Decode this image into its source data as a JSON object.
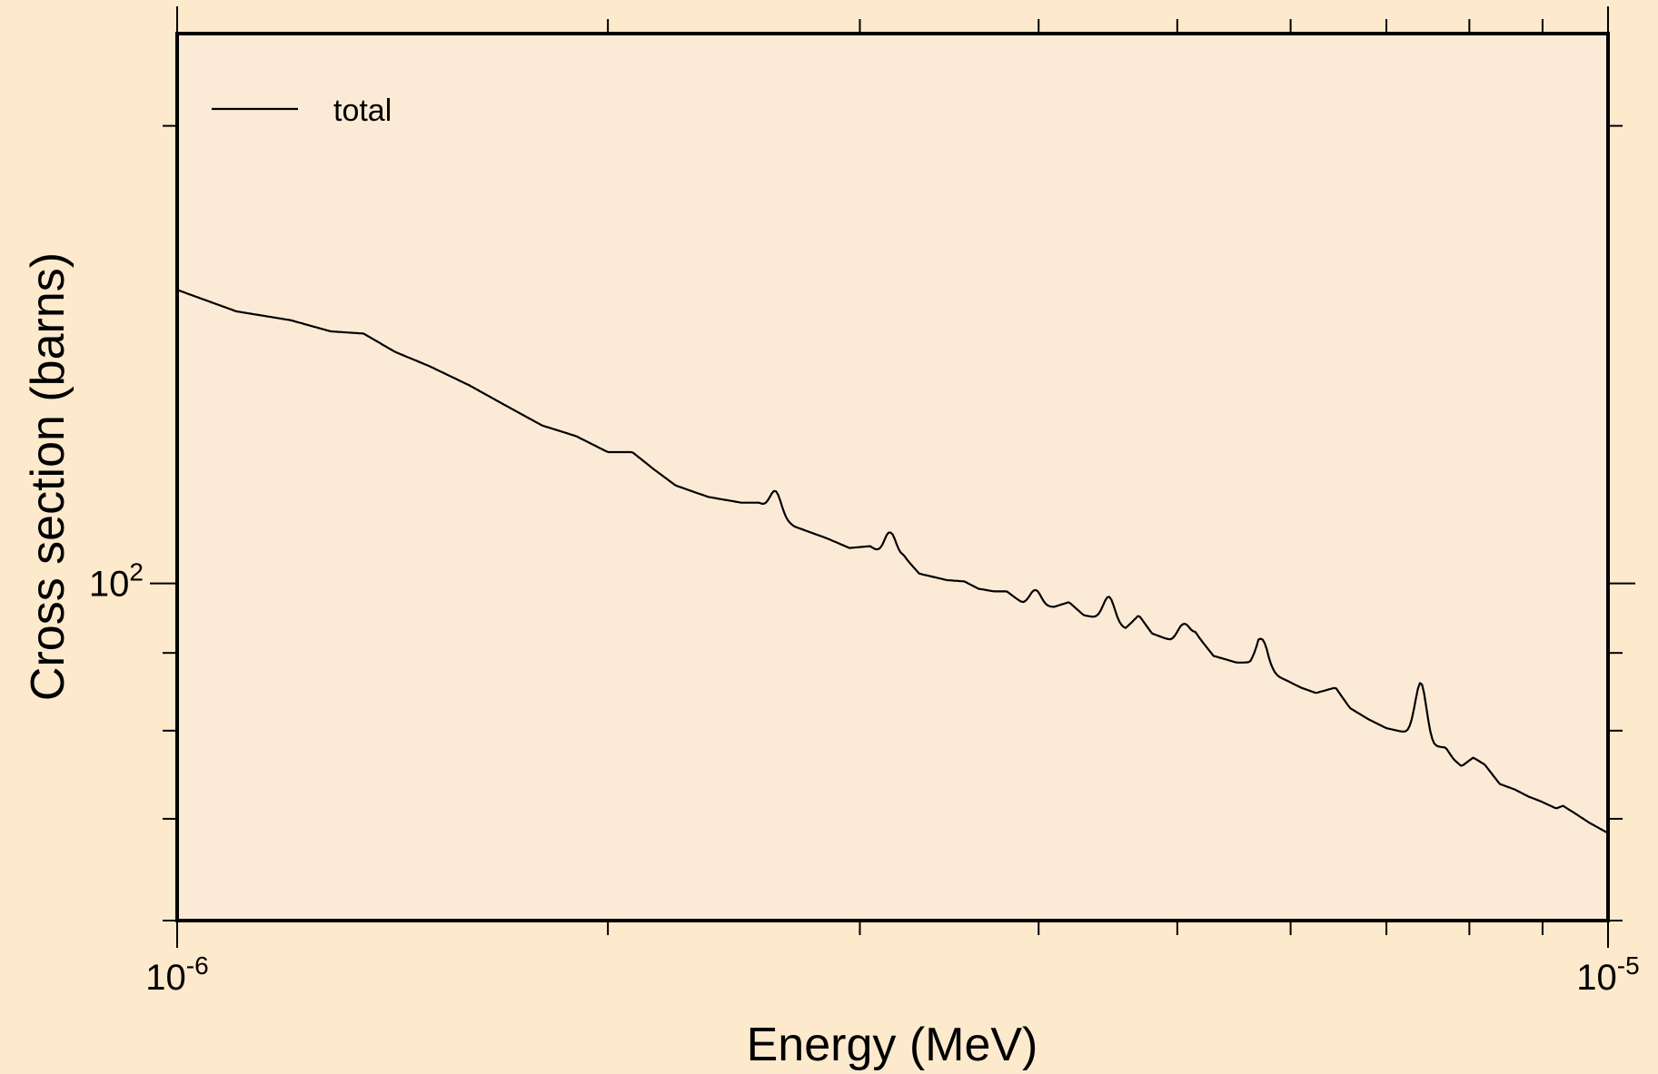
{
  "chart_data": {
    "type": "line",
    "xlabel": "Energy (MeV)",
    "ylabel": "Cross section (barns)",
    "xscale": "log",
    "yscale": "log",
    "xlim": [
      1e-06,
      1e-05
    ],
    "ylim": [
      60,
      230
    ],
    "grid": false,
    "legend_position": "top-left",
    "x_ticks": [
      {
        "value": 1e-06,
        "base": "10",
        "exp": "-6"
      },
      {
        "value": 1e-05,
        "base": "10",
        "exp": "-5"
      }
    ],
    "y_ticks": [
      {
        "value": 100,
        "base": "10",
        "exp": "2"
      }
    ],
    "colors": {
      "background": "#fde9cc",
      "plot_area": "#fbebd6",
      "line": "#000000"
    },
    "series": [
      {
        "name": "total",
        "x": [
          1e-06,
          1.1e-06,
          1.2e-06,
          1.28e-06,
          1.35e-06,
          1.42e-06,
          1.5e-06,
          1.6e-06,
          1.72e-06,
          1.8e-06,
          1.9e-06,
          2e-06,
          2.08e-06,
          2.15e-06,
          2.23e-06,
          2.35e-06,
          2.48e-06,
          2.55e-06,
          2.62e-06,
          2.7e-06,
          2.85e-06,
          2.95e-06,
          3.05e-06,
          3.15e-06,
          3.22e-06,
          3.3e-06,
          3.45e-06,
          3.55e-06,
          3.63e-06,
          3.72e-06,
          3.8e-06,
          3.9e-06,
          3.98e-06,
          4.1e-06,
          4.2e-06,
          4.3e-06,
          4.42e-06,
          4.6e-06,
          4.7e-06,
          4.8e-06,
          4.95e-06,
          5.05e-06,
          5.15e-06,
          5.3e-06,
          5.5e-06,
          5.62e-06,
          5.7e-06,
          5.8e-06,
          5.95e-06,
          6.1e-06,
          6.25e-06,
          6.45e-06,
          6.6e-06,
          6.8e-06,
          7e-06,
          7.3e-06,
          7.4e-06,
          7.55e-06,
          7.7e-06,
          7.8e-06,
          7.9e-06,
          8.05e-06,
          8.2e-06,
          8.4e-06,
          8.6e-06,
          8.8e-06,
          9e-06,
          9.2e-06,
          9.3e-06,
          9.5e-06,
          9.7e-06,
          1e-05
        ],
        "y": [
          156,
          151,
          149,
          146.5,
          146,
          142,
          139,
          135,
          130,
          127,
          125,
          122,
          122,
          119,
          116,
          114,
          113,
          113,
          111,
          109,
          107,
          105.5,
          105.8,
          103.5,
          104.2,
          101.5,
          100.5,
          100.3,
          99.2,
          98.8,
          98.8,
          97,
          96.5,
          96.5,
          97.2,
          95.3,
          94.8,
          93.4,
          95.3,
          92.7,
          91.7,
          91.5,
          92.7,
          89.6,
          88.7,
          88.7,
          90.2,
          87.3,
          86.4,
          85.4,
          84.7,
          85.4,
          82.8,
          81.4,
          80.3,
          79.6,
          78.9,
          78.1,
          78,
          76.6,
          75.8,
          76.8,
          76,
          73.8,
          73.2,
          72.4,
          71.8,
          71.1,
          71.4,
          70.5,
          69.6,
          68.5
        ]
      }
    ],
    "peaks": [
      {
        "x": 2.62e-06,
        "y": 115
      },
      {
        "x": 3.15e-06,
        "y": 108
      },
      {
        "x": 3.98e-06,
        "y": 99
      },
      {
        "x": 4.48e-06,
        "y": 98
      },
      {
        "x": 5.05e-06,
        "y": 94
      },
      {
        "x": 5.75e-06,
        "y": 91.5
      },
      {
        "x": 7.4e-06,
        "y": 86
      },
      {
        "x": 8.85e-06,
        "y": 71.8
      }
    ]
  }
}
